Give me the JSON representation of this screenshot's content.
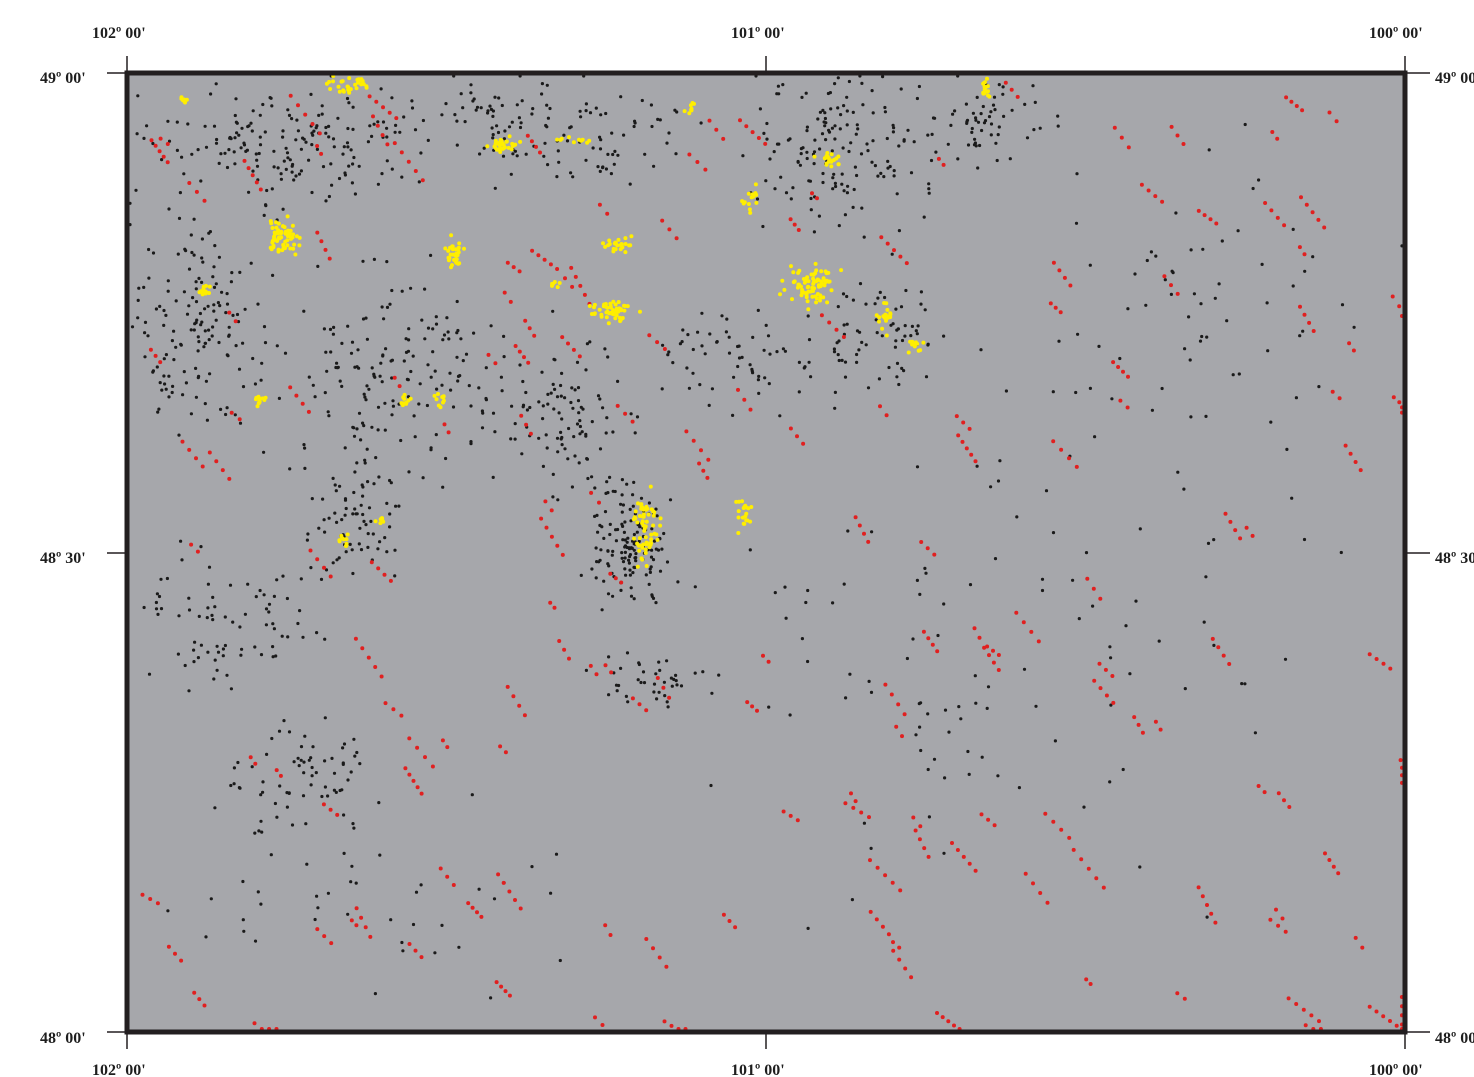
{
  "map": {
    "top_labels": [
      "102º 00'",
      "101º 00'",
      "100º 00'"
    ],
    "bottom_labels": [
      "102º 00'",
      "101º 00'",
      "100º 00'"
    ],
    "left_labels": [
      "49º 00'",
      "48º 30'",
      "48º 00'"
    ],
    "right_labels": [
      "49º 00'",
      "48º 30'",
      "48º 00'"
    ],
    "colors": {
      "background": "#a6a7ab",
      "frame": "#231f20",
      "black_points": "#1a1a1a",
      "red_points": "#e02020",
      "yellow_points": "#ffee00"
    },
    "layers": [
      {
        "color_key": "black_points"
      },
      {
        "color_key": "red_points"
      },
      {
        "color_key": "yellow_points"
      }
    ]
  }
}
